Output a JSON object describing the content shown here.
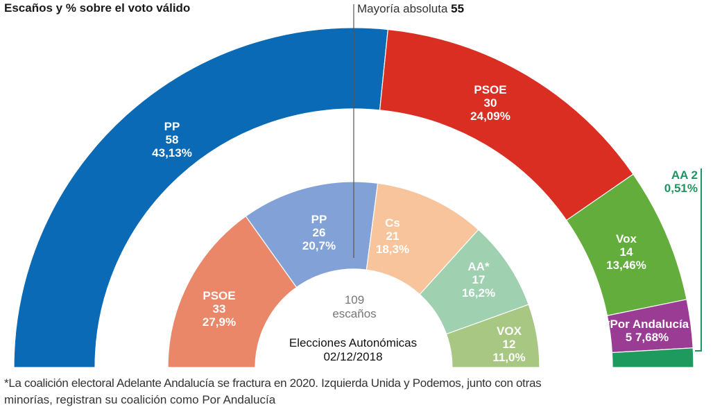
{
  "header": {
    "title": "Escaños y % sobre el voto válido",
    "majority_label": "Mayoría absoluta",
    "majority_value": "55"
  },
  "center": {
    "seats_total": "109",
    "seats_label": "escaños",
    "election_label": "Elecciones Autonómicas",
    "election_date": "02/12/2018"
  },
  "footnote": {
    "line1": "*La coalición electoral Adelante Andalucía se fractura en 2020. Izquierda Unida y Podemos, junto con otras",
    "line2": "minorías, registran su coalición como Por Andalucía"
  },
  "chart_data": [
    {
      "type": "pie",
      "subtype": "parliament-semicircle",
      "ring": "outer",
      "title": "Escaños y % sobre el voto válido",
      "total_seats": 109,
      "majority": 55,
      "series": [
        {
          "name": "PP",
          "seats": 58,
          "pct": "43,13%",
          "color": "#0a6ab5"
        },
        {
          "name": "PSOE",
          "seats": 30,
          "pct": "24,09%",
          "color": "#db2e22"
        },
        {
          "name": "Vox",
          "seats": 14,
          "pct": "13,46%",
          "color": "#63ad3c"
        },
        {
          "name": "*Por Andalucía",
          "seats": 5,
          "pct": "7,68%",
          "color": "#9a3c94"
        },
        {
          "name": "AA",
          "seats": 2,
          "pct": "0,51%",
          "color": "#1f9a5e"
        }
      ]
    },
    {
      "type": "pie",
      "subtype": "parliament-semicircle",
      "ring": "inner",
      "title": "Elecciones Autonómicas 02/12/2018",
      "total_seats": 109,
      "series": [
        {
          "name": "PSOE",
          "seats": 33,
          "pct": "27,9%",
          "color": "#ea8769"
        },
        {
          "name": "PP",
          "seats": 26,
          "pct": "20,7%",
          "color": "#82a1d6"
        },
        {
          "name": "Cs",
          "seats": 21,
          "pct": "18,3%",
          "color": "#f7c49b"
        },
        {
          "name": "AA*",
          "seats": 17,
          "pct": "16,2%",
          "color": "#9fd0b0"
        },
        {
          "name": "VOX",
          "seats": 12,
          "pct": "11,0%",
          "color": "#a8c783"
        }
      ]
    }
  ]
}
